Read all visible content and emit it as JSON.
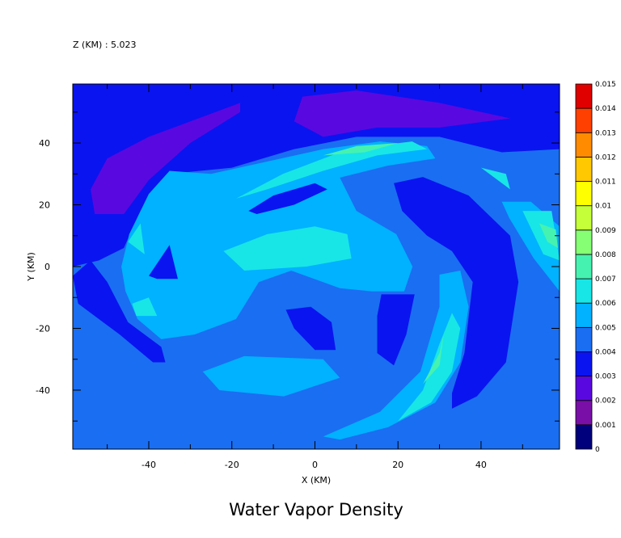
{
  "chart_data": {
    "type": "contour",
    "subtitle": "Z (KM) : 5.023",
    "title": "Water Vapor Density",
    "x_label": "X (KM)",
    "y_label": "Y (KM)",
    "xlim": [
      -58.3,
      58.9
    ],
    "ylim": [
      -59.1,
      59.1
    ],
    "xticks": [
      -40,
      -20,
      0,
      20,
      40
    ],
    "yticks": [
      -40,
      -20,
      0,
      20,
      40
    ],
    "xminor": [
      -50,
      -30,
      -10,
      10,
      30,
      50
    ],
    "yminor": [
      -50,
      -30,
      -10,
      10,
      30,
      50
    ],
    "levels": [
      0,
      0.001,
      0.002,
      0.003,
      0.004,
      0.005,
      0.006,
      0.007,
      0.008,
      0.009,
      0.01,
      0.011,
      0.012,
      0.013,
      0.014,
      0.015
    ],
    "colors": [
      "#00007c",
      "#7a0fa8",
      "#5a08e0",
      "#0a14f0",
      "#1a6ef2",
      "#00b2ff",
      "#18e6e6",
      "#46f2b0",
      "#86ff74",
      "#c4ff3a",
      "#ffff00",
      "#ffc800",
      "#ff8c00",
      "#ff4000",
      "#e00000",
      "#9a0000"
    ],
    "background_level": 0.004,
    "regions": [
      {
        "level": 0.003,
        "points": [
          [
            -58.3,
            59.1
          ],
          [
            58.9,
            59.1
          ],
          [
            58.9,
            38
          ],
          [
            45,
            37
          ],
          [
            30,
            42
          ],
          [
            10,
            42
          ],
          [
            -5,
            38
          ],
          [
            -20,
            32
          ],
          [
            -35,
            30
          ],
          [
            -42,
            18
          ],
          [
            -46,
            6
          ],
          [
            -52,
            2
          ],
          [
            -58.3,
            0
          ]
        ]
      },
      {
        "level": 0.002,
        "points": [
          [
            -53,
            17
          ],
          [
            -54,
            25
          ],
          [
            -50,
            35
          ],
          [
            -40,
            42
          ],
          [
            -28,
            48
          ],
          [
            -18,
            53
          ],
          [
            -18,
            50
          ],
          [
            -30,
            40
          ],
          [
            -40,
            28
          ],
          [
            -46,
            17
          ]
        ]
      },
      {
        "level": 0.002,
        "points": [
          [
            -5,
            47
          ],
          [
            -3,
            55
          ],
          [
            10,
            57
          ],
          [
            30,
            53
          ],
          [
            47,
            48
          ],
          [
            30,
            45
          ],
          [
            15,
            45
          ],
          [
            2,
            42
          ]
        ]
      },
      {
        "level": 0.003,
        "points": [
          [
            19,
            27
          ],
          [
            26,
            29
          ],
          [
            37,
            23
          ],
          [
            47,
            10
          ],
          [
            49,
            -5
          ],
          [
            46,
            -31
          ],
          [
            39,
            -42
          ],
          [
            33,
            -46
          ],
          [
            33,
            -41
          ],
          [
            36,
            -28
          ],
          [
            38,
            -5
          ],
          [
            33,
            5
          ],
          [
            27,
            10
          ],
          [
            21,
            18
          ]
        ]
      },
      {
        "level": 0.003,
        "points": [
          [
            -58.3,
            -3
          ],
          [
            -57,
            -12
          ],
          [
            -47,
            -22
          ],
          [
            -39,
            -31
          ],
          [
            -36,
            -31
          ],
          [
            -37,
            -26
          ],
          [
            -45,
            -18
          ],
          [
            -50,
            -5
          ],
          [
            -54,
            2
          ]
        ]
      },
      {
        "level": 0.005,
        "points": [
          [
            -46.6,
            0
          ],
          [
            -44.7,
            10.5
          ],
          [
            -40,
            23.5
          ],
          [
            -35,
            31
          ],
          [
            -25,
            30
          ],
          [
            -11.5,
            34
          ],
          [
            2,
            38
          ],
          [
            15.7,
            40.5
          ],
          [
            27,
            39
          ],
          [
            29,
            35
          ],
          [
            17.6,
            32.7
          ],
          [
            6,
            28.8
          ],
          [
            10,
            18
          ],
          [
            19.6,
            10.5
          ],
          [
            23.5,
            0
          ],
          [
            21.5,
            -8
          ],
          [
            13.7,
            -8
          ],
          [
            6,
            -7
          ],
          [
            -5.7,
            -1.3
          ],
          [
            -13.5,
            -5
          ],
          [
            -19,
            -17
          ],
          [
            -29,
            -22
          ],
          [
            -37,
            -23.5
          ],
          [
            -42.7,
            -17
          ],
          [
            -45.6,
            -8
          ]
        ]
      },
      {
        "level": 0.003,
        "points": [
          [
            -16,
            18
          ],
          [
            -10,
            23
          ],
          [
            0,
            27
          ],
          [
            3,
            25
          ],
          [
            -5,
            20
          ],
          [
            -14,
            17
          ]
        ]
      },
      {
        "level": 0.003,
        "points": [
          [
            -40,
            -3
          ],
          [
            -35,
            7
          ],
          [
            -33,
            -4
          ],
          [
            -38,
            -4
          ]
        ]
      },
      {
        "level": 0.003,
        "points": [
          [
            -7,
            -14
          ],
          [
            -1,
            -13
          ],
          [
            4,
            -18
          ],
          [
            5,
            -27
          ],
          [
            0,
            -27
          ],
          [
            -5,
            -20
          ]
        ]
      },
      {
        "level": 0.003,
        "points": [
          [
            16,
            -9
          ],
          [
            24,
            -9
          ],
          [
            22,
            -22
          ],
          [
            19,
            -32
          ],
          [
            15,
            -28
          ],
          [
            15,
            -16
          ]
        ]
      },
      {
        "level": 0.005,
        "points": [
          [
            2,
            -55
          ],
          [
            15.7,
            -47
          ],
          [
            25.4,
            -34
          ],
          [
            30,
            -13
          ],
          [
            30,
            -2.6
          ],
          [
            35,
            -1.3
          ],
          [
            37,
            -13
          ],
          [
            35,
            -31
          ],
          [
            29,
            -44
          ],
          [
            17.6,
            -52
          ],
          [
            6,
            -56
          ]
        ]
      },
      {
        "level": 0.006,
        "points": [
          [
            20,
            -50
          ],
          [
            26,
            -40
          ],
          [
            30,
            -25
          ],
          [
            33,
            -15
          ],
          [
            35,
            -20
          ],
          [
            33,
            -34
          ],
          [
            28,
            -44
          ]
        ]
      },
      {
        "level": 0.007,
        "points": [
          [
            26,
            -38
          ],
          [
            30,
            -28
          ],
          [
            31,
            -22
          ],
          [
            30,
            -32
          ]
        ]
      },
      {
        "level": 0.005,
        "points": [
          [
            -27,
            -34
          ],
          [
            -17,
            -29
          ],
          [
            2,
            -30
          ],
          [
            6,
            -36
          ],
          [
            -7.5,
            -42
          ],
          [
            -23,
            -40
          ]
        ]
      },
      {
        "level": 0.005,
        "points": [
          [
            45,
            21
          ],
          [
            52,
            21
          ],
          [
            58.9,
            13
          ],
          [
            58.9,
            -8
          ],
          [
            52.7,
            2.6
          ],
          [
            46.8,
            15.7
          ]
        ]
      },
      {
        "level": 0.006,
        "points": [
          [
            50,
            18
          ],
          [
            57,
            18
          ],
          [
            58.9,
            2
          ],
          [
            55,
            4
          ]
        ]
      },
      {
        "level": 0.007,
        "points": [
          [
            54,
            14
          ],
          [
            58,
            12
          ],
          [
            58.5,
            6
          ],
          [
            56,
            8
          ]
        ]
      },
      {
        "level": 0.006,
        "points": [
          [
            -19,
            22
          ],
          [
            -7.7,
            30
          ],
          [
            8,
            38
          ],
          [
            23.4,
            40.5
          ],
          [
            27,
            38
          ],
          [
            15,
            36
          ],
          [
            2,
            31
          ],
          [
            -11.5,
            25
          ]
        ]
      },
      {
        "level": 0.007,
        "points": [
          [
            2,
            36
          ],
          [
            10,
            39
          ],
          [
            20,
            40
          ],
          [
            12,
            37
          ]
        ]
      },
      {
        "level": 0.006,
        "points": [
          [
            -22,
            5
          ],
          [
            -11.5,
            10.5
          ],
          [
            0,
            13
          ],
          [
            7.8,
            10.5
          ],
          [
            8.8,
            2.6
          ],
          [
            -2,
            0
          ],
          [
            -17,
            -1.3
          ]
        ]
      },
      {
        "level": 0.006,
        "points": [
          [
            -44,
            -12
          ],
          [
            -40,
            -10
          ],
          [
            -38,
            -16
          ],
          [
            -43,
            -16
          ]
        ]
      },
      {
        "level": 0.006,
        "points": [
          [
            -45,
            8
          ],
          [
            -42,
            14
          ],
          [
            -41,
            4
          ]
        ]
      },
      {
        "level": 0.006,
        "points": [
          [
            40,
            32
          ],
          [
            46,
            30
          ],
          [
            47,
            25
          ],
          [
            44,
            28
          ]
        ]
      }
    ]
  }
}
